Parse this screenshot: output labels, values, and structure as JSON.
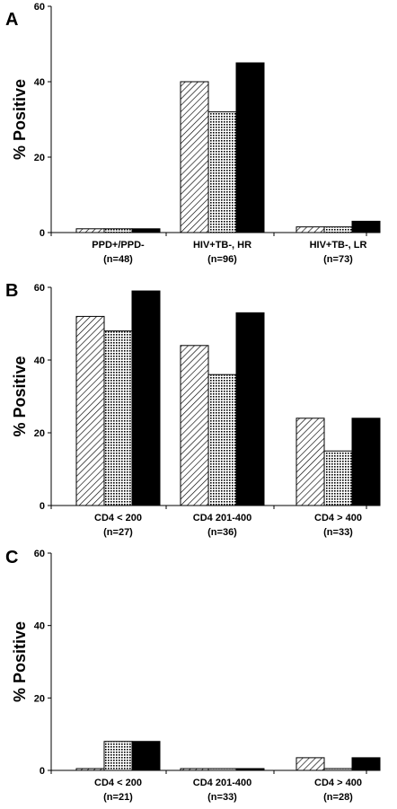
{
  "chart_data": [
    {
      "type": "bar",
      "panel_label": "A",
      "ylabel": "% Positive",
      "ylim": [
        0,
        60
      ],
      "yticks": [
        "0",
        "20",
        "40",
        "60"
      ],
      "categories": [
        {
          "line1": "PPD+/PPD-",
          "line2": "(n=48)"
        },
        {
          "line1": "HIV+TB-, HR",
          "line2": "(n=96)"
        },
        {
          "line1": "HIV+TB-, LR",
          "line2": "(n=73)"
        }
      ],
      "series": [
        {
          "pattern": "hatched",
          "values": [
            1,
            40,
            1.5
          ]
        },
        {
          "pattern": "dotted",
          "values": [
            1,
            32,
            1.5
          ]
        },
        {
          "pattern": "solid",
          "values": [
            1,
            45,
            3
          ]
        }
      ]
    },
    {
      "type": "bar",
      "panel_label": "B",
      "ylabel": "% Positive",
      "ylim": [
        0,
        60
      ],
      "yticks": [
        "0",
        "20",
        "40",
        "60"
      ],
      "categories": [
        {
          "line1": "CD4 < 200",
          "line2": "(n=27)"
        },
        {
          "line1": "CD4 201-400",
          "line2": "(n=36)"
        },
        {
          "line1": "CD4 > 400",
          "line2": "(n=33)"
        }
      ],
      "series": [
        {
          "pattern": "hatched",
          "values": [
            52,
            44,
            24
          ]
        },
        {
          "pattern": "dotted",
          "values": [
            48,
            36,
            15
          ]
        },
        {
          "pattern": "solid",
          "values": [
            59,
            53,
            24
          ]
        }
      ]
    },
    {
      "type": "bar",
      "panel_label": "C",
      "ylabel": "% Positive",
      "ylim": [
        0,
        60
      ],
      "yticks": [
        "0",
        "20",
        "40",
        "60"
      ],
      "categories": [
        {
          "line1": "CD4 < 200",
          "line2": "(n=21)"
        },
        {
          "line1": "CD4 201-400",
          "line2": "(n=33)"
        },
        {
          "line1": "CD4 > 400",
          "line2": "(n=28)"
        }
      ],
      "series": [
        {
          "pattern": "hatched",
          "values": [
            0.5,
            0.5,
            3.5
          ]
        },
        {
          "pattern": "dotted",
          "values": [
            8,
            0.5,
            0.5
          ]
        },
        {
          "pattern": "solid",
          "values": [
            8,
            0.5,
            3.5
          ]
        }
      ]
    }
  ]
}
